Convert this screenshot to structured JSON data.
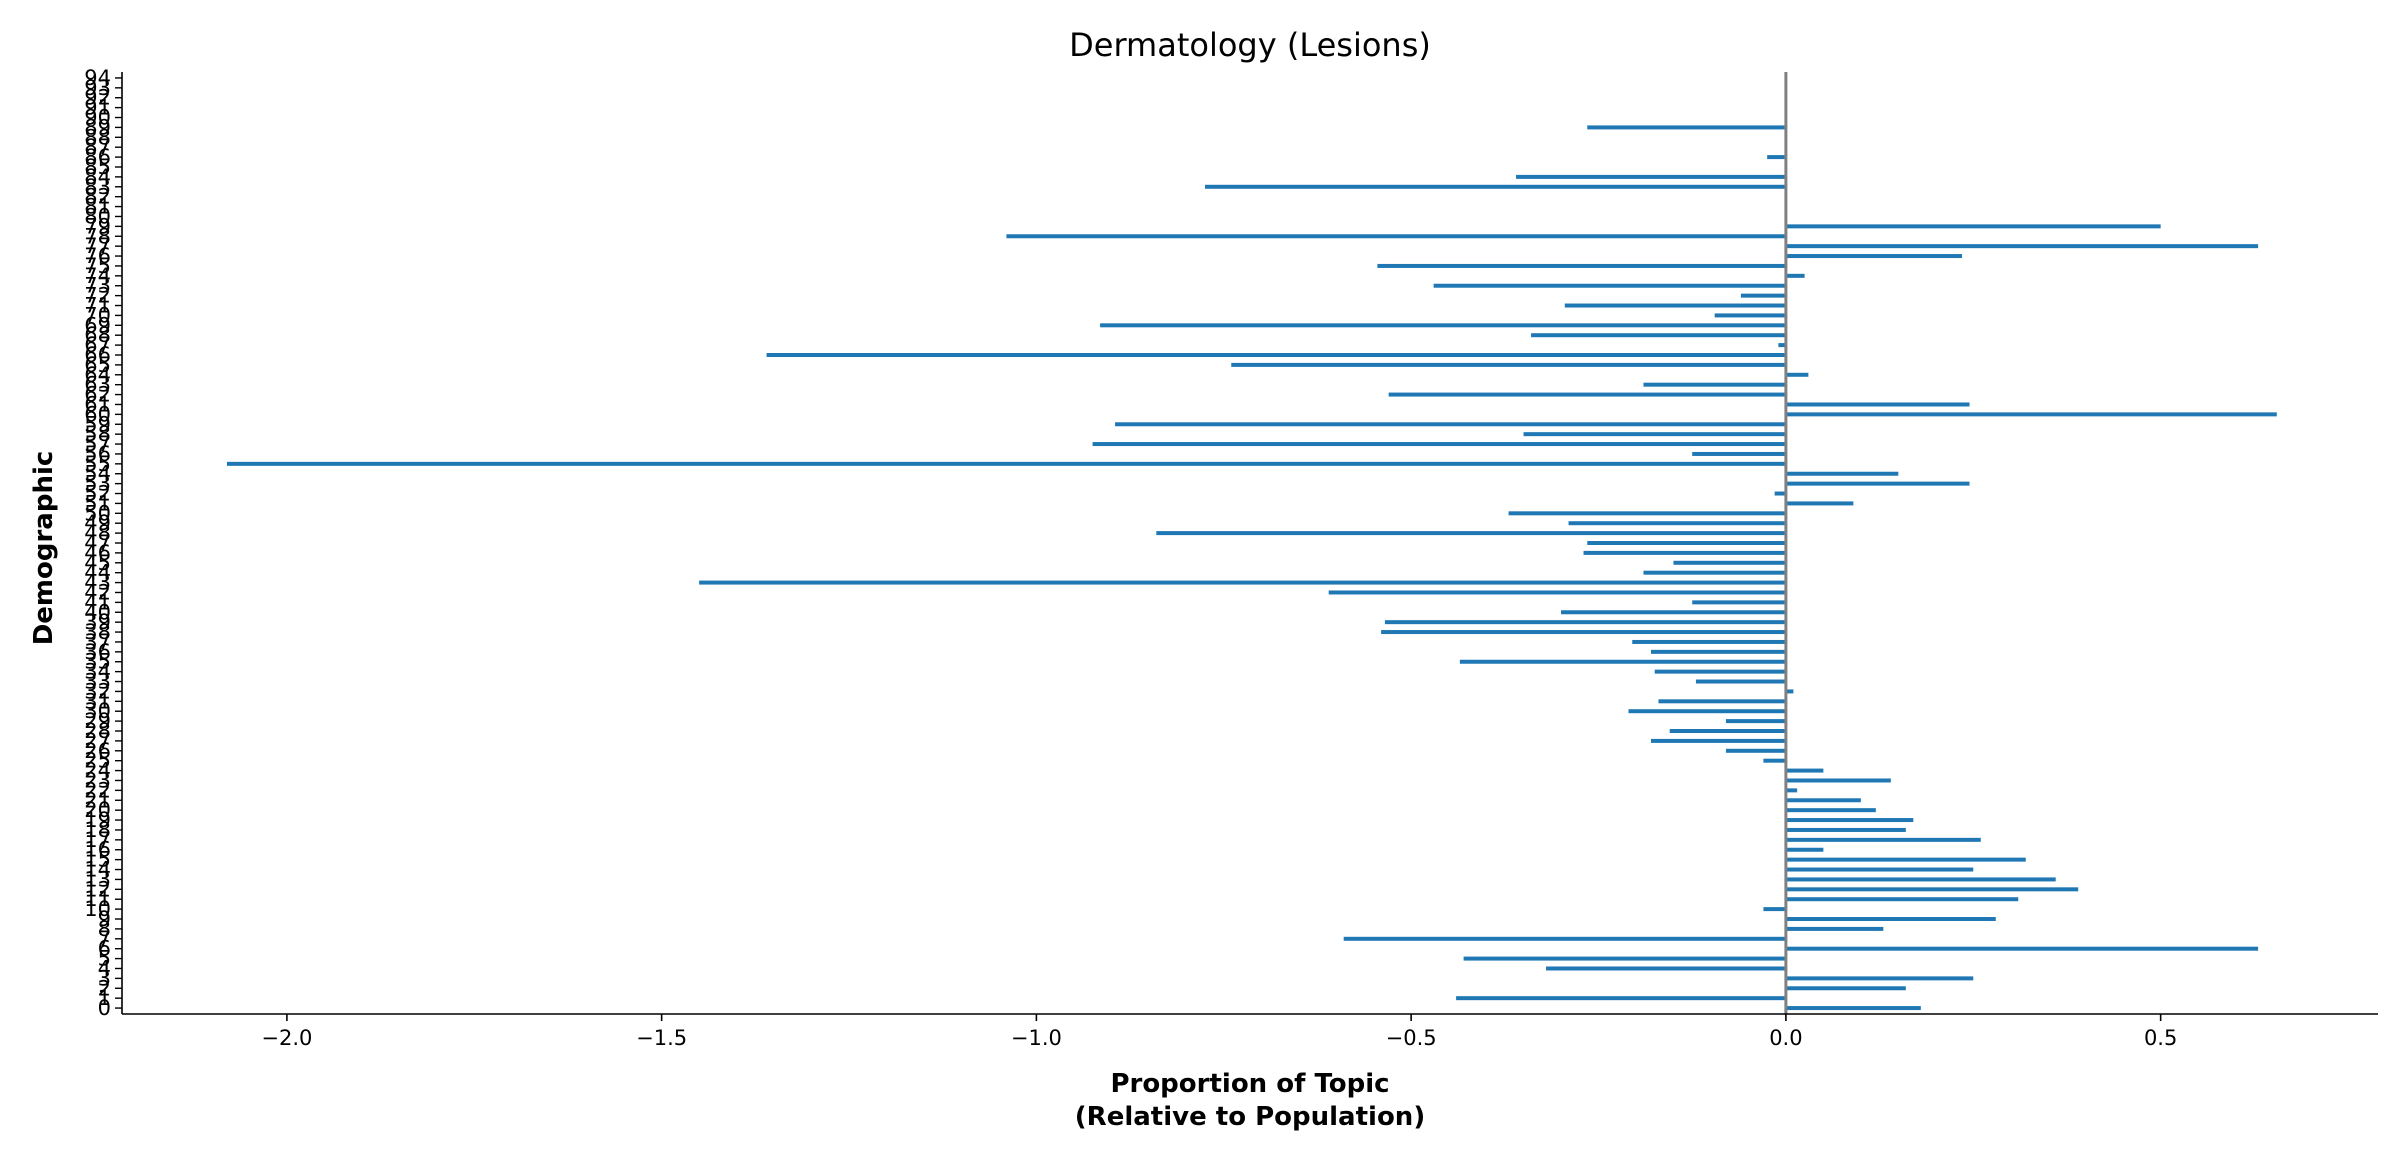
{
  "chart_data": {
    "type": "bar",
    "orientation": "horizontal",
    "title": "Dermatology (Lesions)",
    "xlabel_lines": [
      "Proportion of Topic",
      "(Relative to Population)"
    ],
    "ylabel": "Demographic",
    "xlim": [
      -2.22,
      0.79
    ],
    "ylim": [
      -0.6,
      94.6
    ],
    "xticks": [
      -2.0,
      -1.5,
      -1.0,
      -0.5,
      0.0,
      0.5
    ],
    "xtick_labels": [
      "−2.0",
      "−1.5",
      "−1.0",
      "−0.5",
      "0.0",
      "0.5"
    ],
    "grid": false,
    "legend": false,
    "bar_color": "#1f77b4",
    "zero_line_color": "#808080",
    "categories": [
      "0",
      "1",
      "2",
      "3",
      "4",
      "5",
      "6",
      "7",
      "8",
      "9",
      "10",
      "11",
      "12",
      "13",
      "14",
      "15",
      "16",
      "17",
      "18",
      "19",
      "20",
      "21",
      "22",
      "23",
      "24",
      "25",
      "26",
      "27",
      "28",
      "29",
      "30",
      "31",
      "32",
      "33",
      "34",
      "35",
      "36",
      "37",
      "38",
      "39",
      "40",
      "41",
      "42",
      "43",
      "44",
      "45",
      "46",
      "47",
      "48",
      "49",
      "50",
      "51",
      "52",
      "53",
      "54",
      "55",
      "56",
      "57",
      "58",
      "59",
      "60",
      "61",
      "62",
      "63",
      "64",
      "65",
      "66",
      "67",
      "68",
      "69",
      "70",
      "71",
      "72",
      "73",
      "74",
      "75",
      "76",
      "77",
      "78",
      "79",
      "80",
      "81",
      "82",
      "83",
      "84",
      "85",
      "86",
      "87",
      "88",
      "89",
      "90",
      "91",
      "92",
      "93",
      "94"
    ],
    "values": [
      0.18,
      -0.44,
      0.16,
      0.25,
      -0.32,
      -0.43,
      0.63,
      -0.59,
      0.13,
      0.28,
      -0.03,
      0.31,
      0.39,
      0.36,
      0.25,
      0.32,
      0.05,
      0.26,
      0.16,
      0.17,
      0.12,
      0.1,
      0.015,
      0.14,
      0.05,
      -0.03,
      -0.08,
      -0.18,
      -0.155,
      -0.08,
      -0.21,
      -0.17,
      0.01,
      -0.12,
      -0.175,
      -0.435,
      -0.18,
      -0.205,
      -0.54,
      -0.535,
      -0.3,
      -0.125,
      -0.61,
      -1.45,
      -0.19,
      -0.15,
      -0.27,
      -0.265,
      -0.84,
      -0.29,
      -0.37,
      0.09,
      -0.015,
      0.245,
      0.15,
      -2.08,
      -0.125,
      -0.925,
      -0.35,
      -0.895,
      0.655,
      0.245,
      -0.53,
      -0.19,
      0.03,
      -0.74,
      -1.36,
      -0.01,
      -0.34,
      -0.915,
      -0.095,
      -0.295,
      -0.06,
      -0.47,
      0.025,
      -0.545,
      0.235,
      0.63,
      -1.04,
      0.5,
      0,
      0,
      0,
      -0.775,
      -0.36,
      0,
      -0.025,
      0,
      0,
      -0.265,
      0,
      0,
      0,
      0,
      0
    ]
  }
}
